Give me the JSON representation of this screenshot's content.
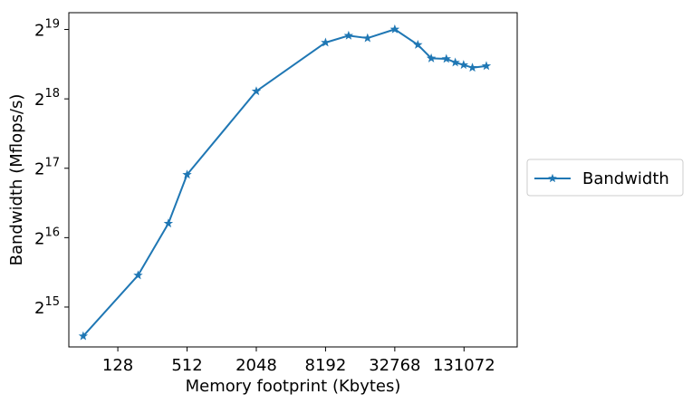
{
  "chart_data": {
    "type": "line",
    "xlabel": "Memory footprint (Kbytes)",
    "ylabel": "Bandwidth (Mflops/s)",
    "x_scale": "log2",
    "y_scale": "log2",
    "xlim": [
      48,
      380000
    ],
    "ylim": [
      22000,
      620000
    ],
    "x_ticks": [
      128,
      512,
      2048,
      8192,
      32768,
      131072
    ],
    "x_tick_labels": [
      "128",
      "512",
      "2048",
      "8192",
      "32768",
      "131072"
    ],
    "y_ticks": [
      32768,
      65536,
      131072,
      262144,
      524288
    ],
    "y_tick_labels": [
      {
        "base": "2",
        "exp": "15"
      },
      {
        "base": "2",
        "exp": "16"
      },
      {
        "base": "2",
        "exp": "17"
      },
      {
        "base": "2",
        "exp": "18"
      },
      {
        "base": "2",
        "exp": "19"
      }
    ],
    "legend_position": "outside-right",
    "grid": false,
    "series": [
      {
        "name": "Bandwidth",
        "color": "#1f77b4",
        "marker": "star",
        "x": [
          64,
          192,
          352,
          512,
          2048,
          8192,
          13000,
          19000,
          32768,
          52000,
          68000,
          92000,
          110000,
          130000,
          155000,
          205000
        ],
        "y": [
          24500,
          45000,
          75500,
          123000,
          283000,
          460000,
          493000,
          481000,
          525000,
          450000,
          393000,
          391000,
          377000,
          368000,
          358000,
          364000
        ]
      }
    ]
  }
}
